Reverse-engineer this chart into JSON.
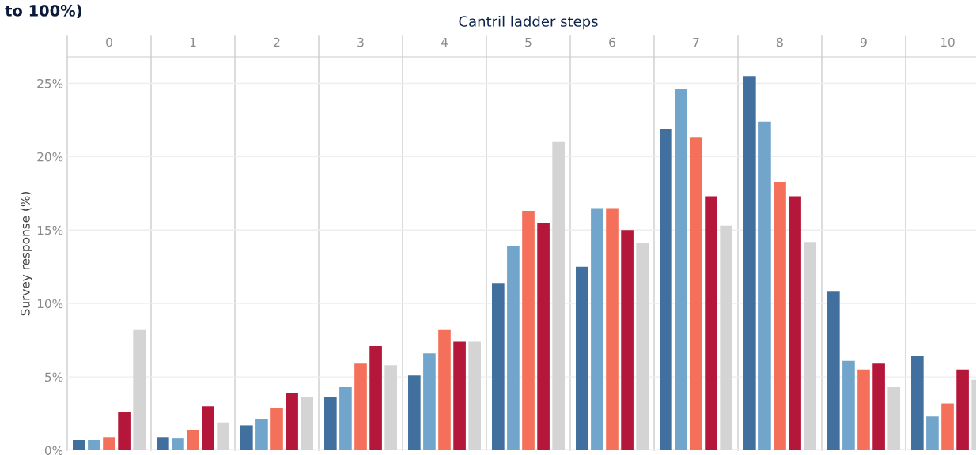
{
  "chart_data": {
    "type": "bar",
    "title": "to 100%)",
    "xlabel": "Cantril ladder steps",
    "ylabel": "Survey response (%)",
    "categories": [
      "0",
      "1",
      "2",
      "3",
      "4",
      "5",
      "6",
      "7",
      "8",
      "9",
      "10"
    ],
    "series": [
      {
        "color": "#41709f",
        "values": [
          0.7,
          0.9,
          1.7,
          3.6,
          5.1,
          11.4,
          12.5,
          21.9,
          25.5,
          10.8,
          6.4
        ]
      },
      {
        "color": "#72a5cb",
        "values": [
          0.7,
          0.8,
          2.1,
          4.3,
          6.6,
          13.9,
          16.5,
          24.6,
          22.4,
          6.1,
          2.3
        ]
      },
      {
        "color": "#f4705b",
        "values": [
          0.9,
          1.4,
          2.9,
          5.9,
          8.2,
          16.3,
          16.5,
          21.3,
          18.3,
          5.5,
          3.2
        ]
      },
      {
        "color": "#b5173a",
        "values": [
          2.6,
          3.0,
          3.9,
          7.1,
          7.4,
          15.5,
          15.0,
          17.3,
          17.3,
          5.9,
          5.5
        ]
      },
      {
        "color": "#d4d4d4",
        "values": [
          8.2,
          1.9,
          3.6,
          5.8,
          7.4,
          21.0,
          14.1,
          15.3,
          14.2,
          4.3,
          4.8
        ]
      }
    ],
    "ylim": [
      0,
      26.8
    ],
    "yticks": [
      {
        "value": 0,
        "label": "0%"
      },
      {
        "value": 5,
        "label": "5%"
      },
      {
        "value": 10,
        "label": "10%"
      },
      {
        "value": 15,
        "label": "15%"
      },
      {
        "value": 20,
        "label": "20%"
      },
      {
        "value": 25,
        "label": "25%"
      }
    ],
    "grid": "y",
    "legend": false
  }
}
